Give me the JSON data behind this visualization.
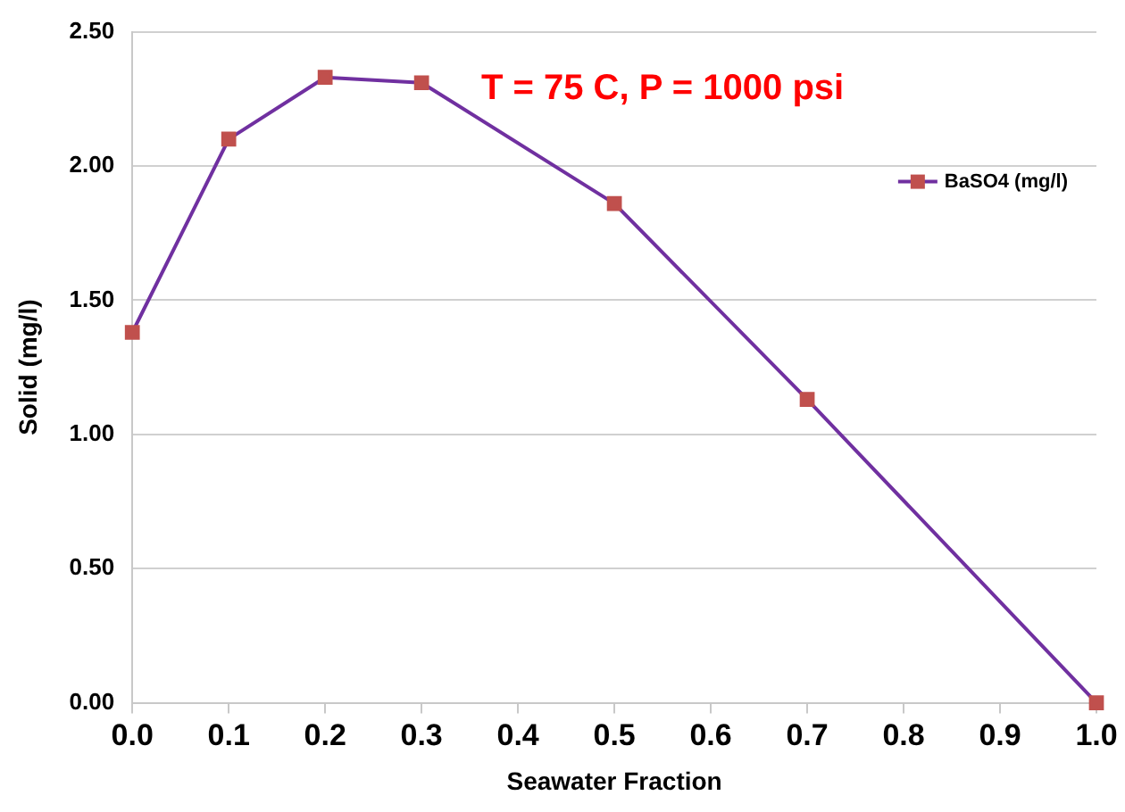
{
  "chart_data": {
    "type": "line",
    "xlabel": "Seawater Fraction",
    "ylabel": "Solid (mg/l)",
    "annotations": [
      "T = 75 C, P = 1000 psi"
    ],
    "x": [
      0,
      0.1,
      0.2,
      0.3,
      0.5,
      0.7,
      1.0
    ],
    "series": [
      {
        "name": "BaSO4 (mg/l)",
        "color": "#7030a0",
        "colors": [
          "#c0504d",
          "#c0504d",
          "#c0504d",
          "#c0504d",
          "#c0504d",
          "#c0504d",
          "#c0504d"
        ],
        "values": [
          1.38,
          2.1,
          2.33,
          2.31,
          1.86,
          1.13,
          0.0
        ]
      }
    ],
    "xlim": [
      0,
      1
    ],
    "xticks": [
      {
        "value": 0,
        "label": "0.0"
      },
      {
        "value": 0.1,
        "label": "0.1"
      },
      {
        "value": 0.2,
        "label": "0.2"
      },
      {
        "value": 0.3,
        "label": "0.3"
      },
      {
        "value": 0.4,
        "label": "0.4"
      },
      {
        "value": 0.5,
        "label": "0.5"
      },
      {
        "value": 0.6,
        "label": "0.6"
      },
      {
        "value": 0.7,
        "label": "0.7"
      },
      {
        "value": 0.8,
        "label": "0.8"
      },
      {
        "value": 0.9,
        "label": "0.9"
      },
      {
        "value": 1,
        "label": "1.0"
      }
    ],
    "ylim": [
      0,
      2.5
    ],
    "yticks": [
      {
        "value": 0,
        "label": "0.00"
      },
      {
        "value": 0.5,
        "label": "0.50"
      },
      {
        "value": 1,
        "label": "1.00"
      },
      {
        "value": 1.5,
        "label": "1.50"
      },
      {
        "value": 2,
        "label": "2.00"
      },
      {
        "value": 2.5,
        "label": "2.50"
      }
    ],
    "grid": "y",
    "legend": "right",
    "marker": "square",
    "line_style": "solid"
  }
}
